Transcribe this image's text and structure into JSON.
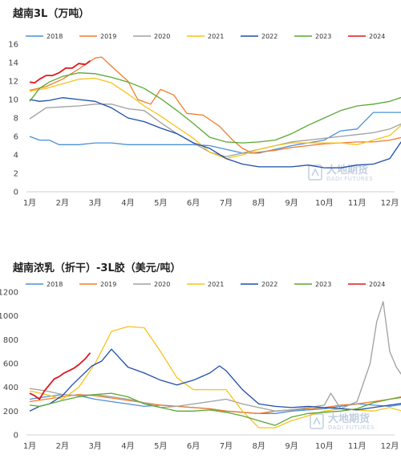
{
  "watermark": {
    "cn": "大地期货",
    "en": "DADI FUTURES"
  },
  "chart_data": [
    {
      "type": "line",
      "title": "越南3L（万吨）",
      "categories": [
        "1月",
        "2月",
        "3月",
        "4月",
        "5月",
        "6月",
        "7月",
        "8月",
        "9月",
        "10月",
        "11月",
        "12月"
      ],
      "ylim": [
        0,
        16
      ],
      "yticks": [
        0,
        2,
        4,
        6,
        8,
        10,
        12,
        14,
        16
      ],
      "grid": false,
      "legend": "top",
      "series": [
        {
          "name": "2018",
          "color": "#4a90d9",
          "x": [
            0,
            0.3,
            0.6,
            0.9,
            1.0,
            1.5,
            2.0,
            2.5,
            3.0,
            3.5,
            4.0,
            4.5,
            5.0,
            5.5,
            6.0,
            6.5,
            7.0,
            7.5,
            8.0,
            8.5,
            9.0,
            9.5,
            10.0,
            10.5,
            11.0,
            11.5,
            11.9
          ],
          "values": [
            6.0,
            5.6,
            5.6,
            5.1,
            5.1,
            5.1,
            5.3,
            5.3,
            5.1,
            5.1,
            5.1,
            5.1,
            5.1,
            5.0,
            4.6,
            4.2,
            4.2,
            4.6,
            5.0,
            5.3,
            5.6,
            6.6,
            6.8,
            8.6,
            8.6,
            8.6,
            10.6
          ]
        },
        {
          "name": "2019",
          "color": "#f07c2a",
          "x": [
            0,
            0.5,
            1.0,
            1.5,
            2.0,
            2.2,
            2.5,
            3.0,
            3.3,
            3.7,
            4.0,
            4.4,
            4.8,
            5.3,
            5.8,
            6.2,
            6.5,
            6.8,
            7.0,
            7.5,
            8.0,
            8.5,
            9.0,
            9.5,
            10.0,
            10.5,
            11.0,
            11.5,
            11.9
          ],
          "values": [
            11.0,
            11.4,
            12.2,
            13.3,
            14.5,
            14.6,
            13.6,
            12.0,
            10.0,
            9.5,
            11.1,
            10.5,
            8.5,
            8.3,
            7.1,
            5.6,
            4.7,
            4.2,
            4.3,
            4.5,
            4.8,
            5.0,
            5.2,
            5.3,
            5.4,
            5.4,
            5.6,
            6.0,
            6.7
          ]
        },
        {
          "name": "2020",
          "color": "#a0a0a0",
          "x": [
            0,
            0.5,
            1.0,
            1.5,
            2.0,
            2.5,
            3.0,
            3.5,
            4.0,
            4.5,
            5.0,
            5.5,
            6.0,
            6.5,
            7.0,
            7.5,
            8.0,
            8.5,
            9.0,
            9.5,
            10.0,
            10.5,
            11.0,
            11.5,
            11.9
          ],
          "values": [
            7.9,
            9.1,
            9.2,
            9.3,
            9.5,
            9.5,
            9.0,
            8.8,
            7.5,
            6.3,
            5.3,
            4.3,
            3.8,
            4.2,
            4.6,
            5.0,
            5.4,
            5.6,
            5.8,
            6.0,
            6.2,
            6.4,
            6.8,
            7.6,
            9.0
          ]
        },
        {
          "name": "2021",
          "color": "#f7c31a",
          "x": [
            0,
            0.5,
            1.0,
            1.5,
            2.0,
            2.5,
            3.0,
            3.5,
            4.0,
            4.5,
            5.0,
            5.5,
            6.0,
            6.5,
            7.0,
            7.5,
            8.0,
            8.5,
            9.0,
            9.5,
            10.0,
            10.5,
            11.0,
            11.5,
            11.9
          ],
          "values": [
            10.9,
            11.2,
            11.7,
            12.2,
            12.3,
            11.8,
            10.6,
            9.3,
            8.2,
            7.0,
            5.8,
            4.3,
            3.6,
            4.0,
            4.6,
            5.0,
            5.3,
            5.3,
            5.3,
            5.3,
            5.1,
            5.6,
            6.1,
            7.7,
            9.7
          ]
        },
        {
          "name": "2022",
          "color": "#1f4ea8",
          "x": [
            0,
            0.3,
            0.6,
            1.0,
            1.5,
            2.0,
            2.5,
            3.0,
            3.5,
            4.0,
            4.5,
            5.0,
            5.5,
            6.0,
            6.5,
            7.0,
            7.5,
            8.0,
            8.5,
            9.0,
            9.5,
            10.0,
            10.5,
            11.0,
            11.5,
            11.9
          ],
          "values": [
            10.0,
            9.8,
            9.9,
            10.2,
            10.0,
            9.8,
            9.1,
            8.0,
            7.6,
            6.9,
            6.3,
            5.3,
            4.7,
            3.6,
            3.0,
            2.7,
            2.7,
            2.7,
            2.9,
            2.6,
            2.6,
            2.9,
            3.0,
            3.6,
            6.2,
            9.0
          ]
        },
        {
          "name": "2023",
          "color": "#5aa832",
          "x": [
            0,
            0.3,
            0.6,
            1.0,
            1.5,
            2.0,
            2.5,
            3.0,
            3.5,
            4.0,
            4.5,
            5.0,
            5.5,
            6.0,
            6.5,
            7.0,
            7.5,
            8.0,
            8.5,
            9.0,
            9.5,
            10.0,
            10.5,
            11.0,
            11.5,
            11.9
          ],
          "values": [
            9.8,
            11.2,
            11.9,
            12.5,
            12.9,
            12.8,
            12.4,
            11.9,
            11.2,
            10.1,
            8.8,
            7.4,
            5.9,
            5.4,
            5.3,
            5.4,
            5.6,
            6.3,
            7.2,
            8.0,
            8.8,
            9.3,
            9.5,
            9.8,
            10.4,
            11.5
          ]
        },
        {
          "name": "2024",
          "color": "#e0161f",
          "x": [
            0,
            0.15,
            0.3,
            0.5,
            0.7,
            0.9,
            1.1,
            1.3,
            1.5,
            1.7,
            1.85
          ],
          "values": [
            11.9,
            11.8,
            12.2,
            12.6,
            12.6,
            12.9,
            13.4,
            13.4,
            13.9,
            13.8,
            14.2
          ]
        }
      ]
    },
    {
      "type": "line",
      "title": "越南浓乳（折干）-3L胶（美元/吨）",
      "categories": [
        "1月",
        "2月",
        "3月",
        "4月",
        "5月",
        "6月",
        "7月",
        "8月",
        "9月",
        "10月",
        "11月",
        "12月"
      ],
      "ylim": [
        0,
        1200
      ],
      "yticks": [
        0,
        200,
        400,
        600,
        800,
        1000,
        1200
      ],
      "grid": false,
      "legend": "top",
      "series": [
        {
          "name": "2018",
          "color": "#4a90d9",
          "x": [
            0,
            0.5,
            1.0,
            1.5,
            2.0,
            2.5,
            3.0,
            3.5,
            4.0,
            4.5,
            5.0,
            5.5,
            6.0,
            6.5,
            7.0,
            7.5,
            8.0,
            8.5,
            9.0,
            9.5,
            10.0,
            10.5,
            11.0,
            11.5,
            11.9
          ],
          "values": [
            300,
            320,
            340,
            330,
            300,
            280,
            260,
            240,
            250,
            240,
            230,
            220,
            200,
            190,
            180,
            180,
            200,
            210,
            220,
            240,
            260,
            250,
            240,
            260,
            270
          ]
        },
        {
          "name": "2019",
          "color": "#f07c2a",
          "x": [
            0,
            0.5,
            1.0,
            1.5,
            2.0,
            2.5,
            3.0,
            3.5,
            4.0,
            4.5,
            5.0,
            5.5,
            6.0,
            6.5,
            7.0,
            7.5,
            8.0,
            8.5,
            9.0,
            9.5,
            10.0,
            10.5,
            11.0,
            11.5,
            11.9
          ],
          "values": [
            280,
            300,
            320,
            340,
            330,
            310,
            290,
            270,
            250,
            240,
            230,
            220,
            200,
            190,
            180,
            200,
            210,
            220,
            230,
            250,
            260,
            280,
            300,
            330,
            300
          ]
        },
        {
          "name": "2020",
          "color": "#a0a0a0",
          "x": [
            0,
            0.5,
            1.0,
            1.5,
            2.0,
            2.5,
            3.0,
            3.5,
            4.0,
            4.5,
            5.0,
            5.5,
            6.0,
            6.5,
            7.0,
            7.5,
            8.0,
            8.5,
            9.0,
            9.2,
            9.5,
            10.0,
            10.4,
            10.6,
            10.8,
            11.0,
            11.2,
            11.5,
            11.9
          ],
          "values": [
            390,
            370,
            340,
            330,
            340,
            320,
            300,
            270,
            230,
            240,
            260,
            280,
            300,
            260,
            230,
            200,
            210,
            230,
            250,
            350,
            220,
            280,
            600,
            950,
            1120,
            700,
            570,
            450,
            350
          ]
        },
        {
          "name": "2021",
          "color": "#f7c31a",
          "x": [
            0,
            0.5,
            1.0,
            1.5,
            2.0,
            2.5,
            3.0,
            3.5,
            3.8,
            4.0,
            4.5,
            5.0,
            5.5,
            6.0,
            6.5,
            7.0,
            7.5,
            8.0,
            8.5,
            9.0,
            9.5,
            10.0,
            10.5,
            11.0,
            11.5,
            11.9
          ],
          "values": [
            370,
            340,
            300,
            400,
            600,
            870,
            910,
            900,
            780,
            700,
            480,
            380,
            380,
            380,
            200,
            60,
            60,
            120,
            160,
            200,
            220,
            210,
            200,
            230,
            190,
            180
          ]
        },
        {
          "name": "2022",
          "color": "#1f4ea8",
          "x": [
            0,
            0.3,
            0.6,
            1.0,
            1.3,
            1.6,
            1.9,
            2.2,
            2.5,
            2.7,
            3.0,
            3.5,
            4.0,
            4.5,
            5.0,
            5.5,
            5.8,
            6.0,
            6.5,
            7.0,
            7.5,
            8.0,
            8.5,
            9.0,
            9.5,
            10.0,
            10.5,
            11.0,
            11.5,
            11.9
          ],
          "values": [
            200,
            240,
            260,
            330,
            420,
            500,
            580,
            620,
            720,
            660,
            570,
            520,
            460,
            420,
            460,
            520,
            580,
            540,
            380,
            260,
            240,
            230,
            240,
            230,
            220,
            210,
            230,
            250,
            270,
            280
          ]
        },
        {
          "name": "2023",
          "color": "#5aa832",
          "x": [
            0,
            0.3,
            0.6,
            1.0,
            1.5,
            2.0,
            2.5,
            3.0,
            3.5,
            4.0,
            4.5,
            5.0,
            5.5,
            6.0,
            6.5,
            7.0,
            7.5,
            8.0,
            8.5,
            9.0,
            9.5,
            10.0,
            10.5,
            11.0,
            11.5,
            11.9
          ],
          "values": [
            250,
            240,
            260,
            290,
            320,
            340,
            350,
            320,
            260,
            230,
            200,
            200,
            210,
            190,
            160,
            120,
            80,
            150,
            180,
            190,
            200,
            220,
            270,
            300,
            320,
            370
          ]
        },
        {
          "name": "2024",
          "color": "#e0161f",
          "x": [
            0,
            0.15,
            0.3,
            0.45,
            0.6,
            0.75,
            0.9,
            1.05,
            1.2,
            1.35,
            1.5,
            1.7,
            1.85
          ],
          "values": [
            350,
            330,
            300,
            370,
            420,
            470,
            490,
            520,
            540,
            560,
            590,
            640,
            690
          ]
        }
      ]
    }
  ]
}
